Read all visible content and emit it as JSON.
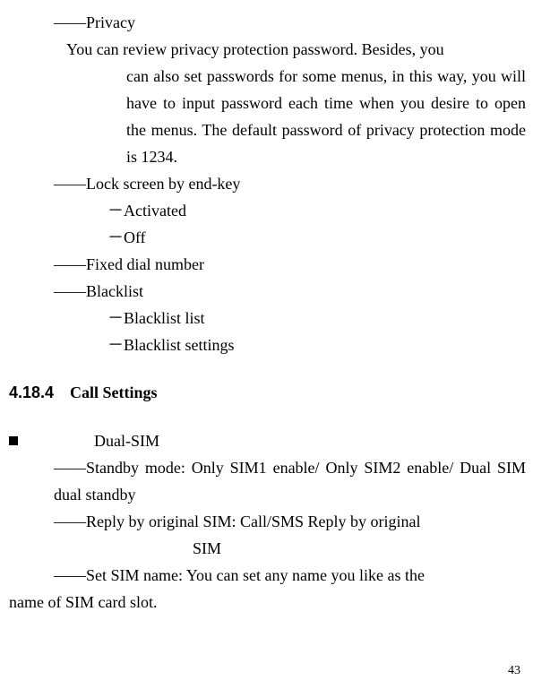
{
  "privacy": {
    "title": "――Privacy",
    "desc_line1": "You can review privacy protection password. Besides, you",
    "desc_rest": "can also set passwords for some menus, in this way, you will have to input password each time when you desire to open the menus. The default password of privacy protection mode is 1234."
  },
  "lockscreen": {
    "title": "――Lock screen by end-key",
    "opt1": "－Activated",
    "opt2": "－Off"
  },
  "fixeddial": {
    "title": "――Fixed dial number"
  },
  "blacklist": {
    "title": "――Blacklist",
    "opt1": "－Blacklist list",
    "opt2": "－Blacklist settings"
  },
  "heading": {
    "num": "4.18.4",
    "text": "Call Settings"
  },
  "dualsim": {
    "bullet": "Dual-SIM",
    "standby": "――Standby mode: Only SIM1 enable/ Only SIM2 enable/ Dual SIM dual standby",
    "reply1": "――Reply by original SIM: Call/SMS Reply by original",
    "reply2": "SIM",
    "setname1": "――Set SIM name: You can set any name you like as the",
    "setname2": "name of SIM card slot."
  },
  "pagenum": "43"
}
